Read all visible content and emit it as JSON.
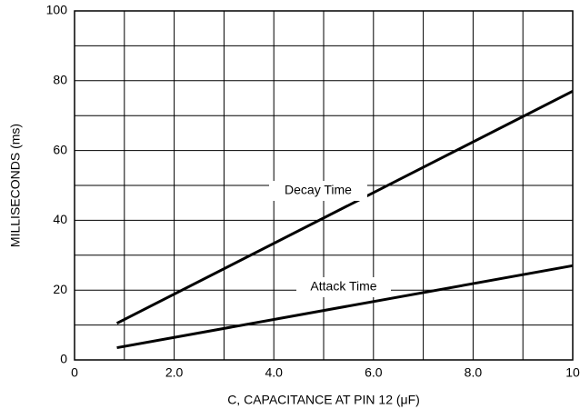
{
  "chart_data": {
    "type": "line",
    "xlabel": "C, CAPACITANCE AT PIN 12 (μF)",
    "ylabel": "MILLISECONDS (ms)",
    "x": [
      0.85,
      10
    ],
    "series": [
      {
        "name": "Decay Time",
        "color": "#000000",
        "values": [
          10.5,
          77
        ]
      },
      {
        "name": "Attack Time",
        "color": "#000000",
        "values": [
          3.5,
          27
        ]
      }
    ],
    "xlim": [
      0,
      10
    ],
    "xticks": [
      0,
      {
        "value": 2,
        "label": "2.0"
      },
      {
        "value": 4,
        "label": "4.0"
      },
      {
        "value": 6,
        "label": "6.0"
      },
      {
        "value": 8,
        "label": "8.0"
      },
      10
    ],
    "xminor": [
      1,
      3,
      5,
      7,
      9
    ],
    "ylim": [
      0,
      100
    ],
    "yticks": [
      0,
      20,
      40,
      60,
      80,
      100
    ],
    "yminor": [
      10,
      30,
      50,
      70,
      90
    ],
    "grid": true
  }
}
